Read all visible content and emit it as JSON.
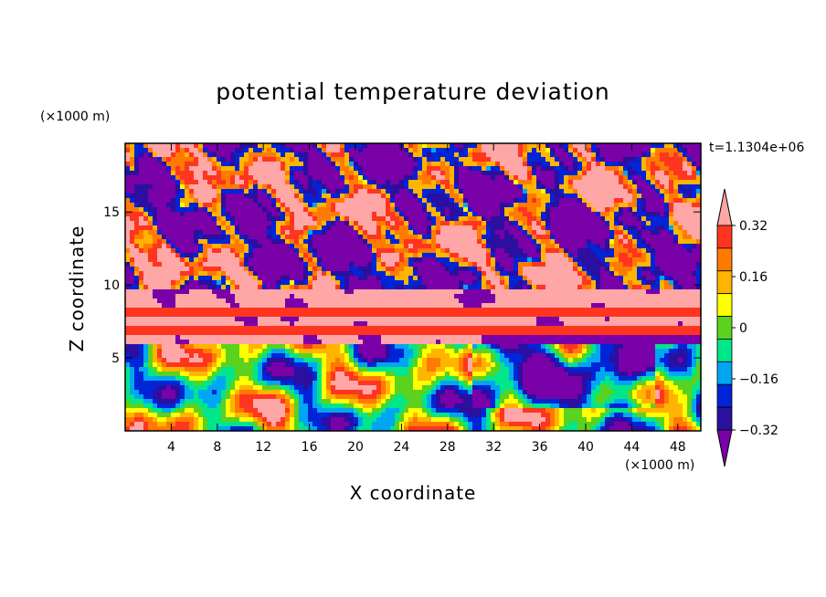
{
  "chart_data": {
    "type": "heatmap",
    "title": "potential temperature deviation",
    "xlabel": "X coordinate",
    "ylabel": "Z coordinate",
    "x_unit": "(×1000 m)",
    "y_unit": "(×1000 m)",
    "time_label": "t=1.1304e+06",
    "xlim": [
      0,
      50
    ],
    "ylim": [
      0,
      19.7
    ],
    "x_ticks": [
      4,
      8,
      12,
      16,
      20,
      24,
      28,
      32,
      36,
      40,
      44,
      48
    ],
    "y_ticks": [
      5,
      10,
      15
    ],
    "colorbar": {
      "levels": [
        -0.4,
        -0.32,
        -0.24,
        -0.16,
        -0.08,
        0,
        0.08,
        0.16,
        0.24,
        0.32,
        0.4
      ],
      "labels": [
        "0.32",
        "0.16",
        "0",
        "−0.16",
        "−0.32"
      ],
      "label_values": [
        0.32,
        0.16,
        0,
        -0.16,
        -0.32
      ],
      "colors": [
        "#7a00a8",
        "#2b0fa0",
        "#0024d8",
        "#00a6f2",
        "#00e68a",
        "#5ad21e",
        "#ffff00",
        "#ffb400",
        "#ff7a00",
        "#ff3520",
        "#ffa6a6"
      ],
      "extend": "both"
    },
    "structure": {
      "upper_anomaly_top_value": 0.45,
      "upper_anomaly_bottom_value": -0.45,
      "bands": [
        {
          "z": 8.1,
          "value": 0.35
        },
        {
          "z": 6.8,
          "value": 0.35
        }
      ],
      "lower_layer_top_z": 6.0
    }
  }
}
